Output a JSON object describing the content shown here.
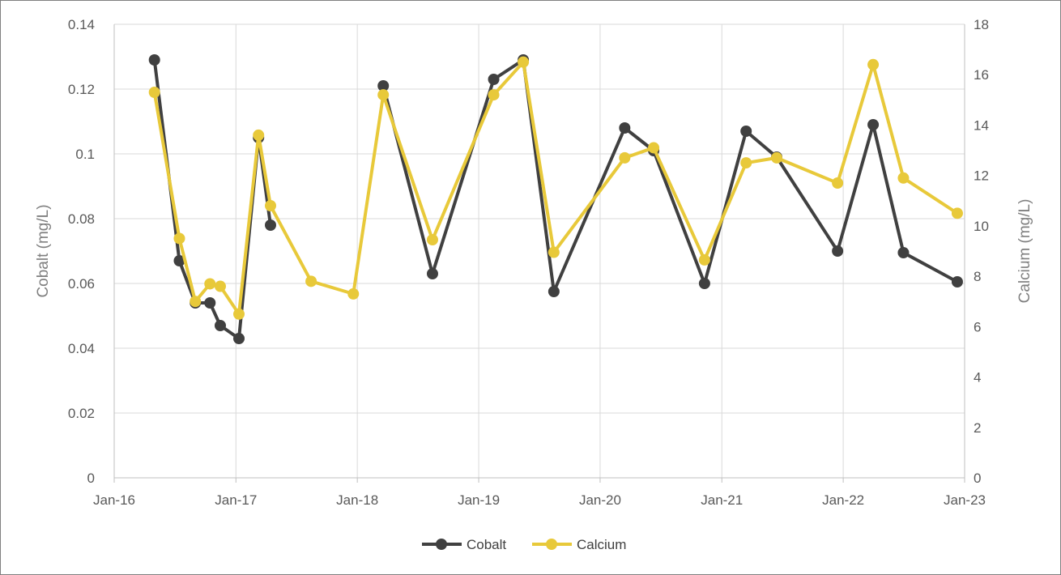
{
  "chart_data": {
    "type": "line",
    "title": "",
    "xlabel": "",
    "ylabel": "Cobalt (mg/L)",
    "y2label": "Calcium (mg/L)",
    "xlim": [
      "2016-01-01",
      "2023-01-01"
    ],
    "x_ticks": [
      "Jan-16",
      "Jan-17",
      "Jan-18",
      "Jan-19",
      "Jan-20",
      "Jan-21",
      "Jan-22",
      "Jan-23"
    ],
    "ylim": [
      0,
      0.14
    ],
    "y_ticks": [
      "0",
      "0.02",
      "0.04",
      "0.06",
      "0.08",
      "0.1",
      "0.12",
      "0.14"
    ],
    "y2lim": [
      0,
      18
    ],
    "y2_ticks": [
      "0",
      "2",
      "4",
      "6",
      "8",
      "10",
      "12",
      "14",
      "16",
      "18"
    ],
    "grid": true,
    "legend": "bottom",
    "series": [
      {
        "name": "Cobalt",
        "axis": "left",
        "color": "#404040",
        "points": [
          [
            "2016-05-01",
            0.129
          ],
          [
            "2016-07-15",
            0.067
          ],
          [
            "2016-09-01",
            0.054
          ],
          [
            "2016-10-15",
            0.054
          ],
          [
            "2016-11-15",
            0.047
          ],
          [
            "2017-01-10",
            0.043
          ],
          [
            "2017-03-10",
            0.105
          ],
          [
            "2017-04-15",
            0.078
          ],
          null,
          [
            "2018-03-20",
            0.121
          ],
          [
            "2018-08-15",
            0.063
          ],
          [
            "2019-02-15",
            0.123
          ],
          [
            "2019-05-15",
            0.129
          ],
          [
            "2019-08-15",
            0.0575
          ],
          [
            "2020-03-15",
            0.108
          ],
          [
            "2020-06-10",
            0.101
          ],
          [
            "2020-11-10",
            0.06
          ],
          [
            "2021-03-15",
            0.107
          ],
          [
            "2021-06-15",
            0.099
          ],
          [
            "2021-12-15",
            0.07
          ],
          [
            "2022-04-01",
            0.109
          ],
          [
            "2022-07-01",
            0.0695
          ],
          [
            "2022-12-10",
            0.0605
          ]
        ]
      },
      {
        "name": "Calcium",
        "axis": "right",
        "color": "#e8c93a",
        "points": [
          [
            "2016-05-01",
            15.3
          ],
          [
            "2016-07-15",
            9.5
          ],
          [
            "2016-09-01",
            7.0
          ],
          [
            "2016-10-15",
            7.7
          ],
          [
            "2016-11-15",
            7.6
          ],
          [
            "2017-01-10",
            6.5
          ],
          [
            "2017-03-10",
            13.6
          ],
          [
            "2017-04-15",
            10.8
          ],
          [
            "2017-08-15",
            7.8
          ],
          [
            "2017-12-20",
            7.3
          ],
          [
            "2018-03-20",
            15.2
          ],
          [
            "2018-08-15",
            9.45
          ],
          [
            "2019-02-15",
            15.2
          ],
          [
            "2019-05-15",
            16.5
          ],
          [
            "2019-08-15",
            8.95
          ],
          [
            "2020-03-15",
            12.7
          ],
          [
            "2020-06-10",
            13.1
          ],
          [
            "2020-11-10",
            8.65
          ],
          [
            "2021-03-15",
            12.5
          ],
          [
            "2021-06-15",
            12.7
          ],
          [
            "2021-12-15",
            11.7
          ],
          [
            "2022-04-01",
            16.4
          ],
          [
            "2022-07-01",
            11.9
          ],
          [
            "2022-12-10",
            10.5
          ]
        ]
      }
    ]
  }
}
